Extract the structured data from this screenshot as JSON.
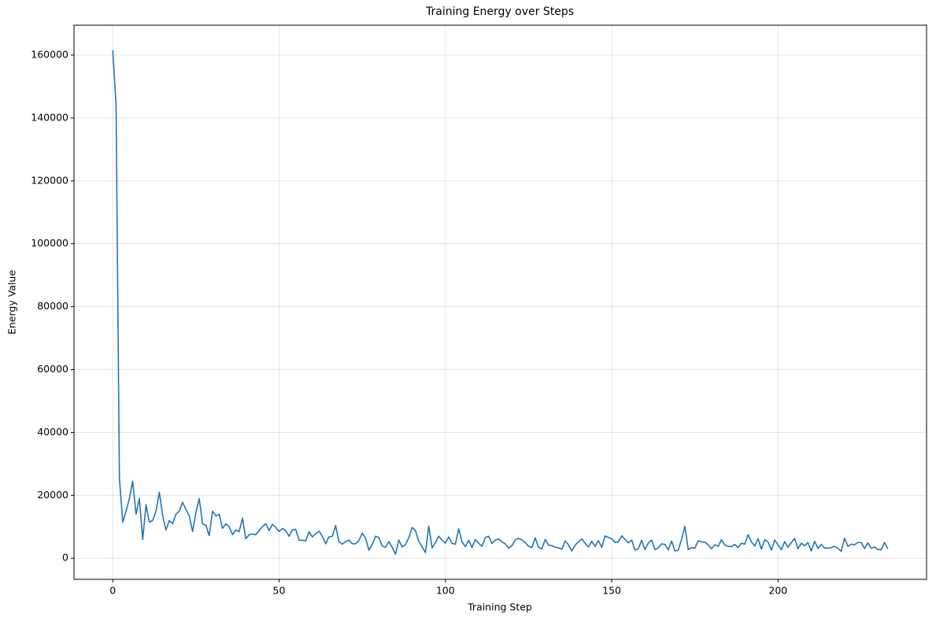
{
  "chart_data": {
    "type": "line",
    "title": "Training Energy over Steps",
    "x_label": "Training Step",
    "y_label": "Energy Value",
    "x": [
      0,
      1,
      2,
      3,
      4,
      5,
      6,
      7,
      8,
      9,
      10,
      11,
      12,
      13,
      14,
      15,
      16,
      17,
      18,
      19,
      20,
      21,
      22,
      23,
      24,
      25,
      26,
      27,
      28,
      29,
      30,
      31,
      32,
      33,
      34,
      35,
      36,
      37,
      38,
      39,
      40,
      41,
      42,
      43,
      44,
      45,
      46,
      47,
      48,
      49,
      50,
      51,
      52,
      53,
      54,
      55,
      56,
      57,
      58,
      59,
      60,
      61,
      62,
      63,
      64,
      65,
      66,
      67,
      68,
      69,
      70,
      71,
      72,
      73,
      74,
      75,
      76,
      77,
      78,
      79,
      80,
      81,
      82,
      83,
      84,
      85,
      86,
      87,
      88,
      89,
      90,
      91,
      92,
      93,
      94,
      95,
      96,
      97,
      98,
      99,
      100,
      101,
      102,
      103,
      104,
      105,
      106,
      107,
      108,
      109,
      110,
      111,
      112,
      113,
      114,
      115,
      116,
      117,
      118,
      119,
      120,
      121,
      122,
      123,
      124,
      125,
      126,
      127,
      128,
      129,
      130,
      131,
      132,
      133,
      134,
      135,
      136,
      137,
      138,
      139,
      140,
      141,
      142,
      143,
      144,
      145,
      146,
      147,
      148,
      149,
      150,
      151,
      152,
      153,
      154,
      155,
      156,
      157,
      158,
      159,
      160,
      161,
      162,
      163,
      164,
      165,
      166,
      167,
      168,
      169,
      170,
      171,
      172,
      173,
      174,
      175,
      176,
      177,
      178,
      179,
      180,
      181,
      182,
      183,
      184,
      185,
      186,
      187,
      188,
      189,
      190,
      191,
      192,
      193,
      194,
      195,
      196,
      197,
      198,
      199,
      200,
      201,
      202,
      203,
      204,
      205,
      206,
      207,
      208,
      209,
      210,
      211,
      212,
      213,
      214,
      215,
      216,
      217,
      218,
      219,
      220,
      221,
      222,
      223,
      224,
      225,
      226,
      227,
      228,
      229,
      230,
      231,
      232,
      233
    ],
    "series": [
      {
        "color": "#1f77b4",
        "values": [
          161500,
          144000,
          25500,
          11500,
          15000,
          19000,
          24500,
          14000,
          19000,
          6000,
          17000,
          11500,
          12000,
          15000,
          21000,
          13500,
          9000,
          12000,
          11000,
          14000,
          15000,
          17800,
          15500,
          13500,
          8500,
          14500,
          19000,
          11000,
          10500,
          7200,
          15000,
          13500,
          14000,
          9500,
          11000,
          10000,
          7500,
          9000,
          8500,
          12800,
          6200,
          7500,
          7700,
          7500,
          8800,
          10000,
          11000,
          8800,
          10800,
          9800,
          8500,
          9500,
          8800,
          7000,
          9000,
          9200,
          5800,
          5700,
          5500,
          8500,
          6800,
          7800,
          8600,
          7000,
          4600,
          6800,
          7000,
          10400,
          5300,
          4500,
          5300,
          5800,
          4600,
          4600,
          5600,
          8000,
          6400,
          2600,
          4400,
          7000,
          6600,
          3900,
          3500,
          5300,
          3500,
          1300,
          5800,
          3600,
          4400,
          6500,
          9800,
          8800,
          5400,
          3600,
          1800,
          10200,
          3300,
          5000,
          7000,
          5800,
          4800,
          6800,
          4700,
          4500,
          9400,
          5200,
          3700,
          5700,
          3400,
          6000,
          4800,
          3800,
          6600,
          7000,
          4700,
          5800,
          6100,
          5200,
          4600,
          3200,
          4000,
          5800,
          6400,
          5800,
          5000,
          3800,
          3400,
          6500,
          3500,
          3000,
          6000,
          4200,
          4000,
          3500,
          3300,
          2900,
          5500,
          4300,
          2300,
          4200,
          5200,
          6200,
          4800,
          3600,
          5400,
          3800,
          5600,
          3500,
          7100,
          6600,
          6200,
          5000,
          5200,
          7100,
          6000,
          4900,
          5800,
          2600,
          3000,
          5700,
          2800,
          4800,
          5800,
          2700,
          3300,
          4600,
          4400,
          2700,
          5500,
          2300,
          2600,
          6000,
          10200,
          2800,
          3400,
          3200,
          5600,
          5200,
          5100,
          4300,
          3000,
          4300,
          3800,
          5900,
          4200,
          3800,
          3700,
          4400,
          3400,
          4800,
          4500,
          7500,
          5200,
          3900,
          6200,
          2900,
          5900,
          5200,
          2600,
          5800,
          4300,
          2700,
          5300,
          3500,
          5000,
          6300,
          3000,
          4800,
          4000,
          5000,
          2300,
          5400,
          3100,
          4400,
          3300,
          3200,
          3400,
          3800,
          3200,
          2200,
          6400,
          3800,
          4500,
          4300,
          5000,
          5000,
          3100,
          4900,
          3200,
          3600,
          2800,
          2700,
          5000,
          3000
        ]
      }
    ],
    "xlim": [
      -11.65,
      244.65
    ],
    "ylim": [
      -6700,
      169500
    ],
    "xticks": [
      0,
      50,
      100,
      150,
      200
    ],
    "yticks": [
      0,
      20000,
      40000,
      60000,
      80000,
      100000,
      120000,
      140000,
      160000
    ],
    "grid": true
  }
}
